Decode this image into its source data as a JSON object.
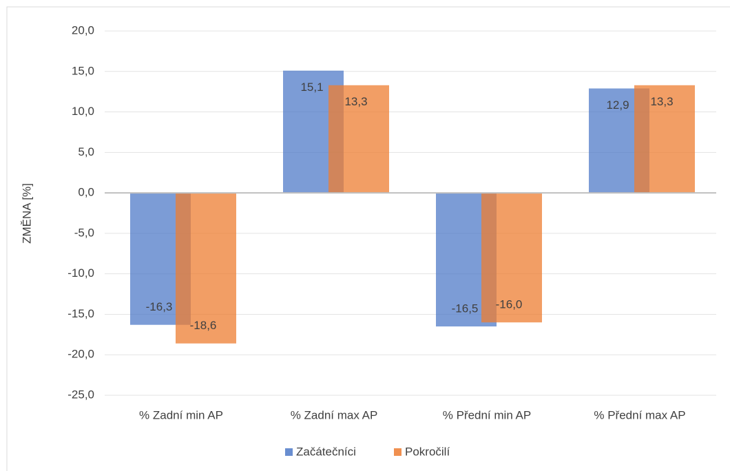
{
  "chart_data": {
    "type": "bar",
    "y_label": "ZMĚNA [%]",
    "categories": [
      "% Zadní min AP",
      "% Zadní max AP",
      "% Přední min AP",
      "% Přední max AP"
    ],
    "series": [
      {
        "name": "Začátečníci",
        "color": "#4472c4",
        "values": [
          -16.3,
          15.1,
          -16.5,
          12.9
        ],
        "value_labels": [
          "-16,3",
          "15,1",
          "-16,5",
          "12,9"
        ]
      },
      {
        "name": "Pokročilí",
        "color": "#ed7d31",
        "values": [
          -18.6,
          13.3,
          -16.0,
          13.3
        ],
        "value_labels": [
          "-18,6",
          "13,3",
          "-16,0",
          "13,3"
        ]
      }
    ],
    "ylim": [
      -25,
      20
    ],
    "yticks": [
      {
        "value": -25,
        "label": "-25,0"
      },
      {
        "value": -20,
        "label": "-20,0"
      },
      {
        "value": -15,
        "label": "-15,0"
      },
      {
        "value": -10,
        "label": "-10,0"
      },
      {
        "value": -5,
        "label": "-5,0"
      },
      {
        "value": 0,
        "label": "0,0"
      },
      {
        "value": 5,
        "label": "5,0"
      },
      {
        "value": 10,
        "label": "10,0"
      },
      {
        "value": 15,
        "label": "15,0"
      },
      {
        "value": 20,
        "label": "20,0"
      }
    ],
    "grid": true,
    "legend": "bottom"
  }
}
